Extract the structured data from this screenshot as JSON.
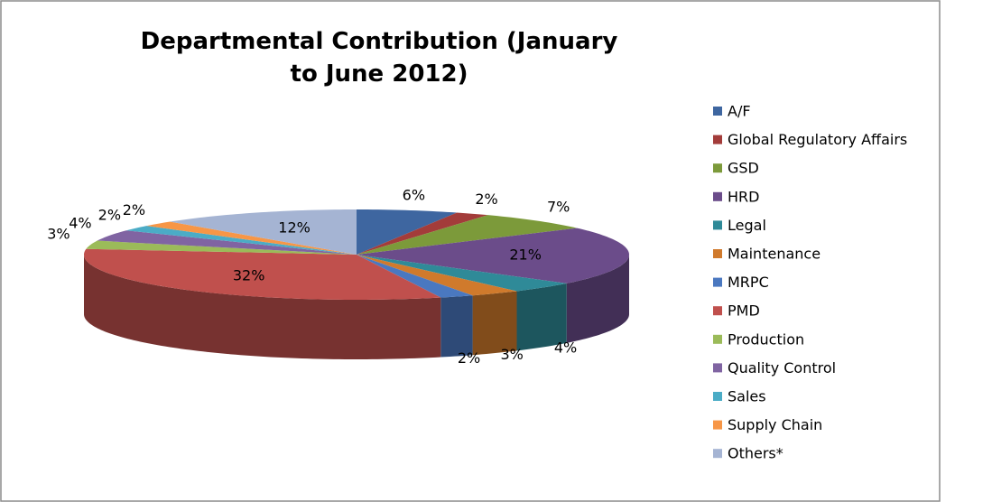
{
  "chart_data": {
    "type": "pie",
    "title": "Departmental Contribution (January to June 2012)",
    "categories": [
      "A/F",
      "Global Regulatory Affairs",
      "GSD",
      "HRD",
      "Legal",
      "Maintenance",
      "MRPC",
      "PMD",
      "Production",
      "Quality Control",
      "Sales",
      "Supply Chain",
      "Others*"
    ],
    "values": [
      6,
      2,
      7,
      21,
      4,
      3,
      2,
      32,
      3,
      4,
      2,
      2,
      12
    ],
    "value_labels": [
      "6%",
      "2%",
      "7%",
      "21%",
      "4%",
      "3%",
      "2%",
      "32%",
      "3%",
      "4%",
      "2%",
      "2%",
      "12%"
    ],
    "colors": [
      "#3e66a0",
      "#a33c3a",
      "#7c9a3a",
      "#6b4c8a",
      "#2f8a98",
      "#d07a2c",
      "#4a78c0",
      "#c0504d",
      "#9bbb59",
      "#8064a2",
      "#4bacc6",
      "#f79646",
      "#a5b4d3"
    ],
    "legend": "right"
  }
}
